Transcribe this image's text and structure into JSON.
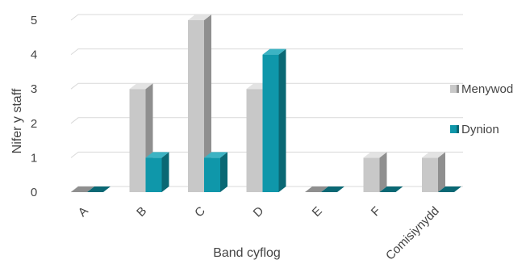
{
  "chart_data": {
    "type": "bar",
    "title": "",
    "xlabel": "Band cyflog",
    "ylabel": "Nifer y staff",
    "categories": [
      "A",
      "B",
      "C",
      "D",
      "E",
      "F",
      "Comisiynydd"
    ],
    "series": [
      {
        "name": "Menywod",
        "values": [
          0,
          3,
          5,
          3,
          0,
          1,
          1
        ]
      },
      {
        "name": "Dynion",
        "values": [
          0,
          1,
          1,
          4,
          0,
          0,
          0
        ]
      }
    ],
    "ylim": [
      0,
      5
    ],
    "yticks": [
      "0",
      "1",
      "2",
      "3",
      "4",
      "5"
    ],
    "grid": true,
    "legend_position": "right",
    "colors": {
      "Menywod": {
        "front": "#c8c8c8",
        "side": "#8f8f8f",
        "top": "#e3e3e3"
      },
      "Dynion": {
        "front": "#0f97aa",
        "side": "#0a6874",
        "top": "#3cb3c3"
      },
      "grid": "#d9d9d9"
    }
  }
}
